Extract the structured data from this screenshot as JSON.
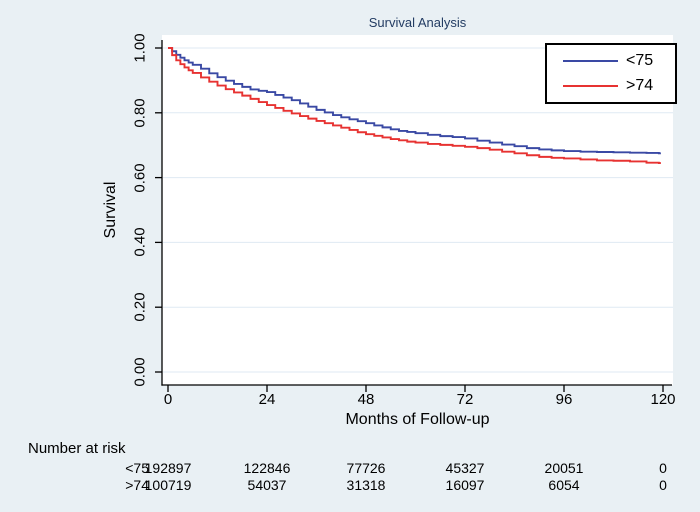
{
  "chart_data": {
    "type": "line",
    "subtype": "kaplan-meier-step",
    "title": "Survival Analysis",
    "xlabel": "Months of Follow-up",
    "ylabel": "Survival",
    "xlim": [
      0,
      120
    ],
    "ylim": [
      0,
      1.04
    ],
    "grid": true,
    "legend_position": "top-right",
    "x_ticks": [
      0,
      24,
      48,
      72,
      96,
      120
    ],
    "x_tick_labels": [
      "0",
      "24",
      "48",
      "72",
      "96",
      "120"
    ],
    "y_ticks": [
      0.0,
      0.2,
      0.4,
      0.6,
      0.8,
      1.0
    ],
    "y_tick_labels": [
      "0.00",
      "0.20",
      "0.40",
      "0.60",
      "0.80",
      "1.00"
    ],
    "colors": {
      "background": "#e9f0f4",
      "plot_background": "#ffffff",
      "gridline": "#dfeaf3",
      "axis": "#000000",
      "title": "#233c63"
    },
    "series": [
      {
        "name": "<75",
        "color": "#3a49a4",
        "points": [
          [
            0,
            1.0
          ],
          [
            1,
            0.99
          ],
          [
            2,
            0.979
          ],
          [
            3,
            0.97
          ],
          [
            4,
            0.962
          ],
          [
            5,
            0.955
          ],
          [
            6,
            0.948
          ],
          [
            8,
            0.936
          ],
          [
            10,
            0.922
          ],
          [
            12,
            0.91
          ],
          [
            14,
            0.899
          ],
          [
            16,
            0.889
          ],
          [
            18,
            0.88
          ],
          [
            20,
            0.872
          ],
          [
            22,
            0.868
          ],
          [
            24,
            0.864
          ],
          [
            26,
            0.855
          ],
          [
            28,
            0.847
          ],
          [
            30,
            0.839
          ],
          [
            32,
            0.829
          ],
          [
            34,
            0.819
          ],
          [
            36,
            0.809
          ],
          [
            38,
            0.801
          ],
          [
            40,
            0.793
          ],
          [
            42,
            0.786
          ],
          [
            44,
            0.78
          ],
          [
            46,
            0.774
          ],
          [
            48,
            0.768
          ],
          [
            50,
            0.761
          ],
          [
            52,
            0.755
          ],
          [
            54,
            0.749
          ],
          [
            56,
            0.744
          ],
          [
            58,
            0.741
          ],
          [
            60,
            0.737
          ],
          [
            63,
            0.732
          ],
          [
            66,
            0.728
          ],
          [
            69,
            0.725
          ],
          [
            72,
            0.721
          ],
          [
            75,
            0.714
          ],
          [
            78,
            0.708
          ],
          [
            81,
            0.702
          ],
          [
            84,
            0.697
          ],
          [
            87,
            0.691
          ],
          [
            90,
            0.687
          ],
          [
            93,
            0.684
          ],
          [
            96,
            0.682
          ],
          [
            100,
            0.68
          ],
          [
            104,
            0.679
          ],
          [
            108,
            0.678
          ],
          [
            112,
            0.677
          ],
          [
            116,
            0.676
          ],
          [
            119,
            0.675
          ]
        ]
      },
      {
        "name": ">74",
        "color": "#e73231",
        "points": [
          [
            0,
            1.0
          ],
          [
            1,
            0.978
          ],
          [
            2,
            0.962
          ],
          [
            3,
            0.95
          ],
          [
            4,
            0.94
          ],
          [
            5,
            0.931
          ],
          [
            6,
            0.923
          ],
          [
            8,
            0.909
          ],
          [
            10,
            0.896
          ],
          [
            12,
            0.884
          ],
          [
            14,
            0.873
          ],
          [
            16,
            0.863
          ],
          [
            18,
            0.853
          ],
          [
            20,
            0.843
          ],
          [
            22,
            0.833
          ],
          [
            24,
            0.824
          ],
          [
            26,
            0.815
          ],
          [
            28,
            0.806
          ],
          [
            30,
            0.798
          ],
          [
            32,
            0.79
          ],
          [
            34,
            0.782
          ],
          [
            36,
            0.775
          ],
          [
            38,
            0.768
          ],
          [
            40,
            0.761
          ],
          [
            42,
            0.754
          ],
          [
            44,
            0.747
          ],
          [
            46,
            0.74
          ],
          [
            48,
            0.734
          ],
          [
            50,
            0.729
          ],
          [
            52,
            0.724
          ],
          [
            54,
            0.719
          ],
          [
            56,
            0.715
          ],
          [
            58,
            0.711
          ],
          [
            60,
            0.708
          ],
          [
            63,
            0.704
          ],
          [
            66,
            0.701
          ],
          [
            69,
            0.698
          ],
          [
            72,
            0.695
          ],
          [
            75,
            0.691
          ],
          [
            78,
            0.686
          ],
          [
            81,
            0.68
          ],
          [
            84,
            0.675
          ],
          [
            87,
            0.669
          ],
          [
            90,
            0.664
          ],
          [
            93,
            0.661
          ],
          [
            96,
            0.659
          ],
          [
            100,
            0.656
          ],
          [
            104,
            0.653
          ],
          [
            108,
            0.652
          ],
          [
            112,
            0.65
          ],
          [
            116,
            0.646
          ],
          [
            119,
            0.645
          ]
        ]
      }
    ],
    "number_at_risk": {
      "label": "Number at risk",
      "rows": [
        {
          "name": "<75",
          "values": [
            "192897",
            "122846",
            "77726",
            "45327",
            "20051",
            "0"
          ]
        },
        {
          "name": ">74",
          "values": [
            "100719",
            "54037",
            "31318",
            "16097",
            "6054",
            "0"
          ]
        }
      ]
    }
  }
}
